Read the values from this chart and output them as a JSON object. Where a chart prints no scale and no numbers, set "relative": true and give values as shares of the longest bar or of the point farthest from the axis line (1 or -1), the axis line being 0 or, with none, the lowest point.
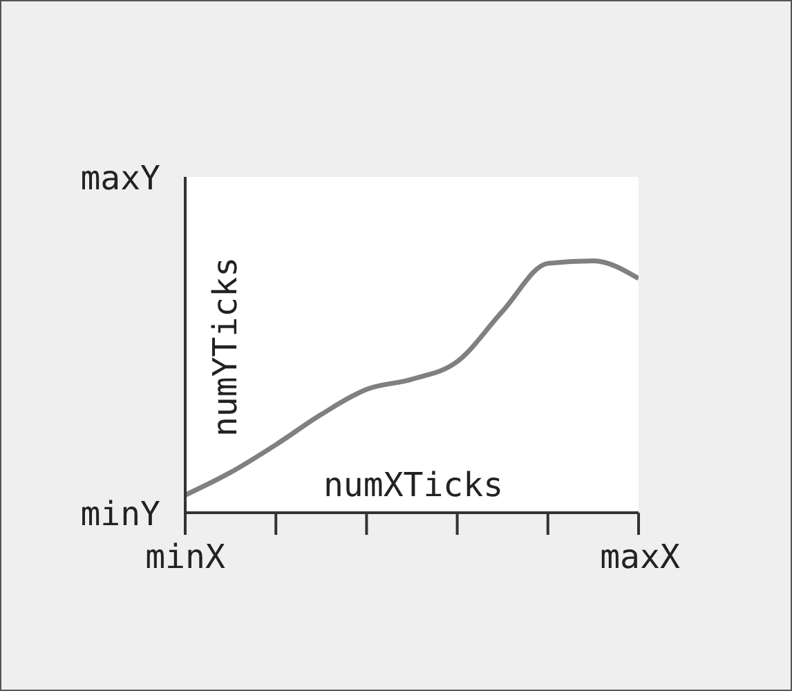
{
  "chart_data": {
    "type": "line",
    "relative": true,
    "categories": [
      null,
      null,
      null,
      null,
      null,
      null,
      null,
      null,
      null,
      null,
      null
    ],
    "series": [
      {
        "color": "#808080",
        "values": [
          0.07,
          0.16,
          0.27,
          0.39,
          0.49,
          0.53,
          0.6,
          0.8,
          0.99,
          1,
          0.93
        ]
      }
    ],
    "annotations": [
      "maxY",
      "minY",
      "minX",
      "maxX",
      "numYTicks",
      "numXTicks"
    ],
    "marker": "none",
    "grid": false
  }
}
